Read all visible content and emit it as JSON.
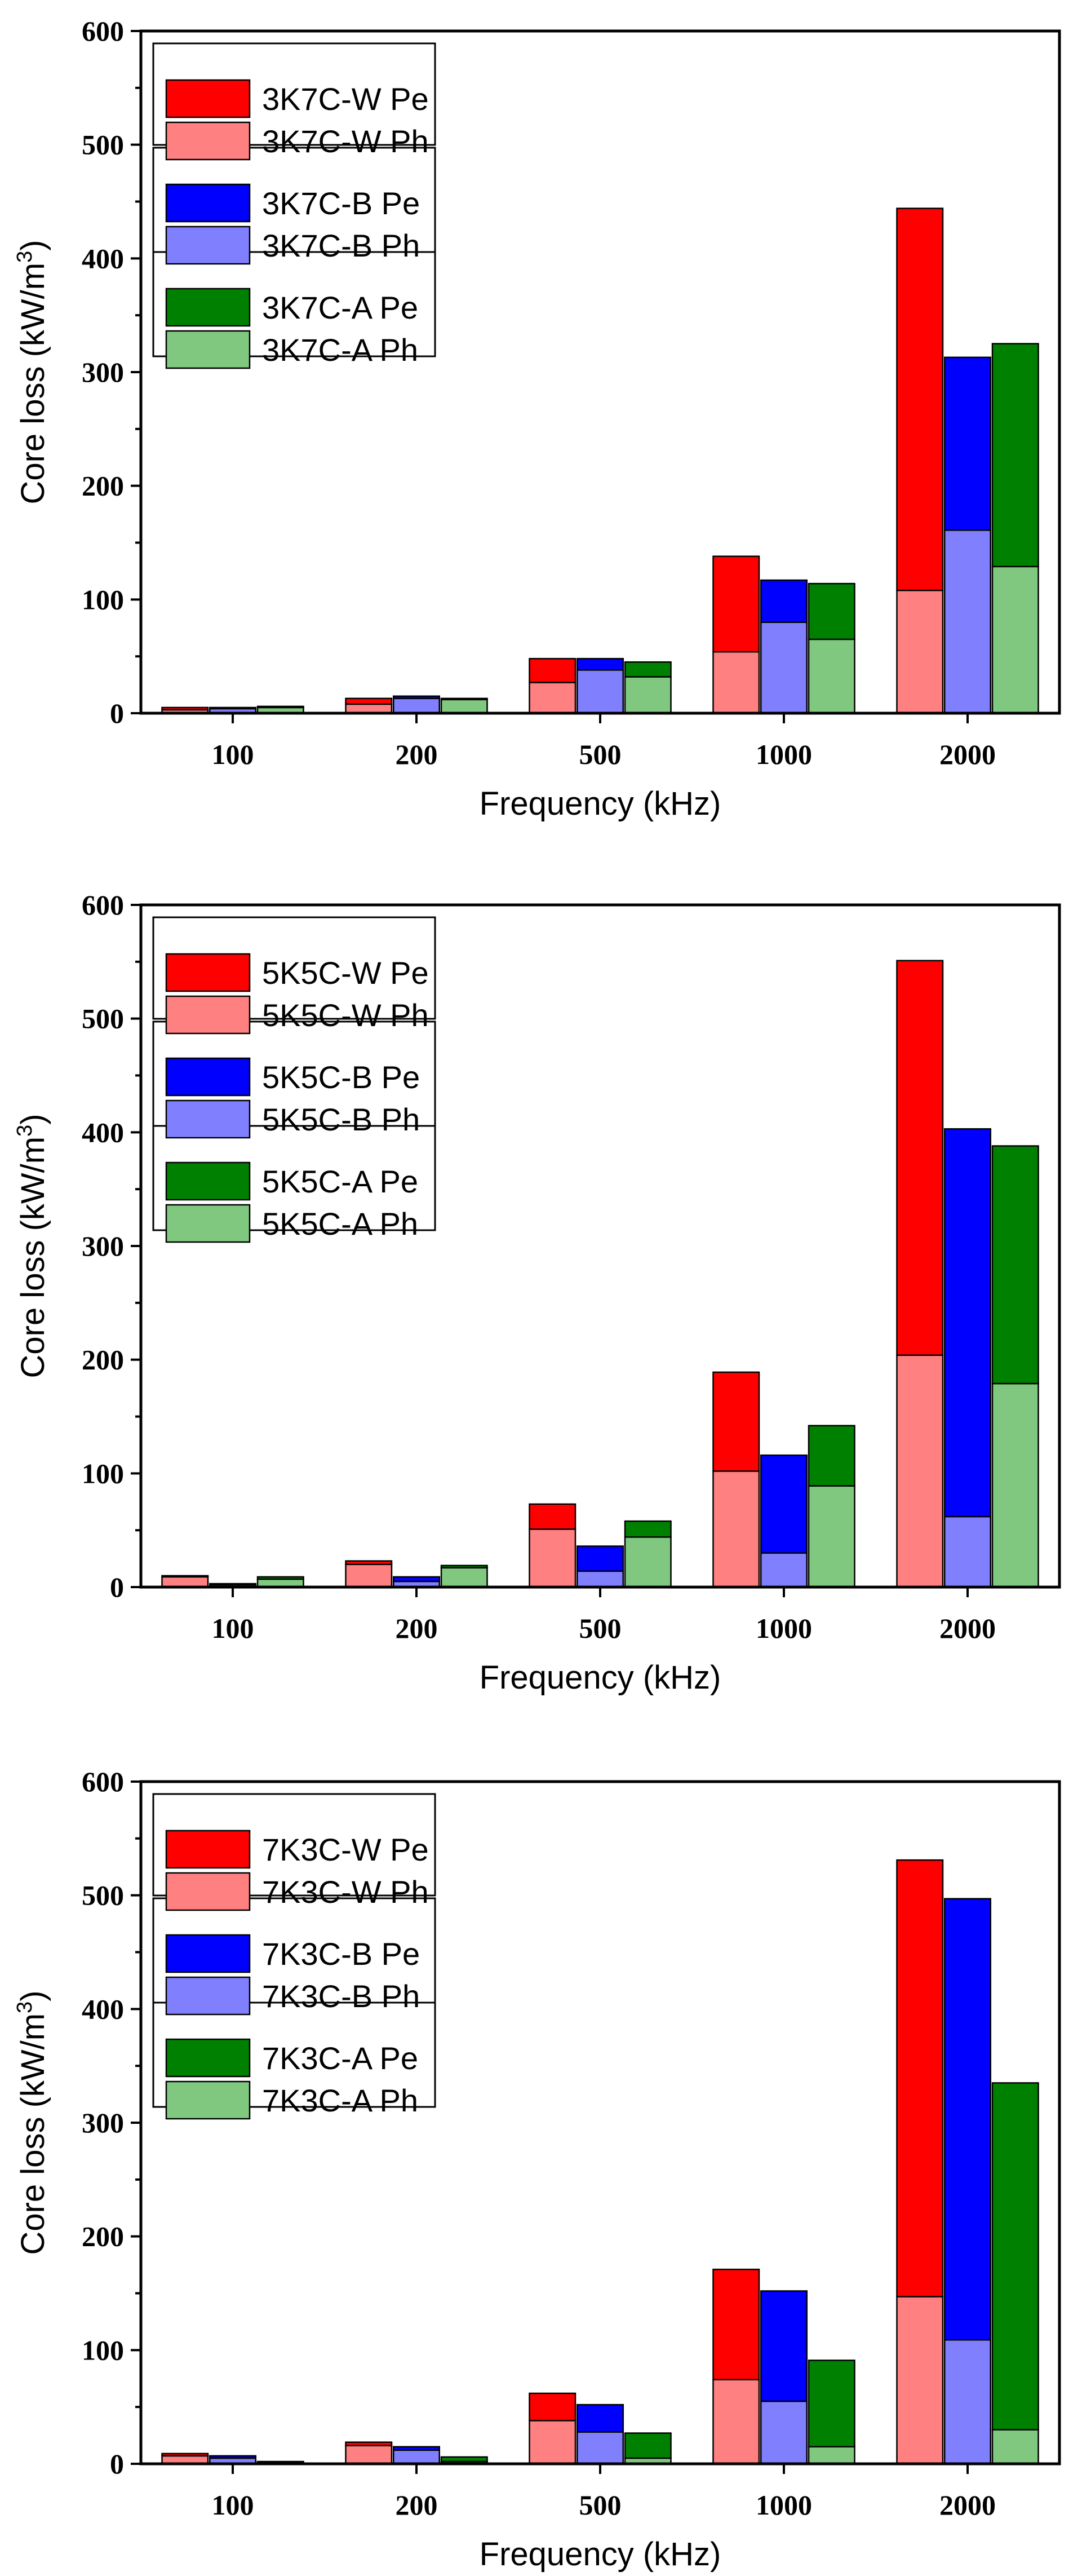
{
  "colors": {
    "W_Pe": "#ff0000",
    "W_Ph": "#ff8080",
    "B_Pe": "#0000ff",
    "B_Ph": "#8080ff",
    "A_Pe": "#008000",
    "A_Ph": "#80c880",
    "axis": "#000000"
  },
  "chart_data": [
    {
      "type": "bar",
      "stacked": true,
      "categories": [
        "100",
        "200",
        "500",
        "1000",
        "2000"
      ],
      "xlabel": "Frequency (kHz)",
      "ylabel": "Core loss (kW/m³)",
      "ylabel_base": "Core loss (kW/m",
      "ylabel_sup": "3",
      "ylabel_close": ")",
      "ylim": [
        0,
        600
      ],
      "yticks": [
        0,
        100,
        200,
        300,
        400,
        500,
        600
      ],
      "legend": [
        "3K7C-W Pe",
        "3K7C-W  Ph",
        "3K7C-B Pe",
        "3K7C-B Ph",
        "3K7C-A Pe",
        "3K7C-A Ph"
      ],
      "legend_position": "top-left",
      "groups": [
        {
          "name": "3K7C-W",
          "color_pe": "W_Pe",
          "color_ph": "W_Ph",
          "ph": [
            3,
            8,
            27,
            54,
            108
          ],
          "total": [
            5,
            13,
            48,
            138,
            444
          ]
        },
        {
          "name": "3K7C-B",
          "color_pe": "B_Pe",
          "color_ph": "B_Ph",
          "ph": [
            4,
            13,
            38,
            80,
            161
          ],
          "total": [
            5,
            15,
            48,
            117,
            313
          ]
        },
        {
          "name": "3K7C-A",
          "color_pe": "A_Pe",
          "color_ph": "A_Ph",
          "ph": [
            5,
            12,
            32,
            65,
            129
          ],
          "total": [
            6,
            13,
            45,
            114,
            325
          ]
        }
      ]
    },
    {
      "type": "bar",
      "stacked": true,
      "categories": [
        "100",
        "200",
        "500",
        "1000",
        "2000"
      ],
      "xlabel": "Frequency (kHz)",
      "ylabel": "Core loss (kW/m³)",
      "ylabel_base": "Core loss (kW/m",
      "ylabel_sup": "3",
      "ylabel_close": ")",
      "ylim": [
        0,
        600
      ],
      "yticks": [
        0,
        100,
        200,
        300,
        400,
        500,
        600
      ],
      "legend": [
        "5K5C-W Pe",
        "5K5C-W Ph",
        "5K5C-B Pe",
        "5K5C-B Ph",
        "5K5C-A Pe",
        "5K5C-A Ph"
      ],
      "legend_position": "top-left",
      "groups": [
        {
          "name": "5K5C-W",
          "color_pe": "W_Pe",
          "color_ph": "W_Ph",
          "ph": [
            9,
            20,
            51,
            102,
            204
          ],
          "total": [
            10,
            23,
            73,
            189,
            551
          ]
        },
        {
          "name": "5K5C-B",
          "color_pe": "B_Pe",
          "color_ph": "B_Ph",
          "ph": [
            2,
            5,
            14,
            30,
            62
          ],
          "total": [
            3,
            9,
            36,
            116,
            403
          ]
        },
        {
          "name": "5K5C-A",
          "color_pe": "A_Pe",
          "color_ph": "A_Ph",
          "ph": [
            7,
            17,
            44,
            89,
            179
          ],
          "total": [
            9,
            19,
            58,
            142,
            388
          ]
        }
      ]
    },
    {
      "type": "bar",
      "stacked": true,
      "categories": [
        "100",
        "200",
        "500",
        "1000",
        "2000"
      ],
      "xlabel": "Frequency (kHz)",
      "ylabel": "Core loss (kW/m³)",
      "ylabel_base": "Core loss (kW/m",
      "ylabel_sup": "3",
      "ylabel_close": ")",
      "ylim": [
        0,
        600
      ],
      "yticks": [
        0,
        100,
        200,
        300,
        400,
        500,
        600
      ],
      "legend": [
        "7K3C-W Pe",
        "7K3C-W Ph",
        "7K3C-B Pe",
        "7K3C-B Ph",
        "7K3C-A Pe",
        "7K3C-A Ph"
      ],
      "legend_position": "top-left",
      "groups": [
        {
          "name": "7K3C-W",
          "color_pe": "W_Pe",
          "color_ph": "W_Ph",
          "ph": [
            7,
            16,
            38,
            74,
            147
          ],
          "total": [
            9,
            19,
            62,
            171,
            531
          ]
        },
        {
          "name": "7K3C-B",
          "color_pe": "B_Pe",
          "color_ph": "B_Ph",
          "ph": [
            5,
            12,
            28,
            55,
            109
          ],
          "total": [
            7,
            15,
            52,
            152,
            497
          ]
        },
        {
          "name": "7K3C-A",
          "color_pe": "A_Pe",
          "color_ph": "A_Ph",
          "ph": [
            1,
            2,
            5,
            15,
            30
          ],
          "total": [
            2,
            6,
            27,
            91,
            335
          ]
        }
      ]
    }
  ]
}
